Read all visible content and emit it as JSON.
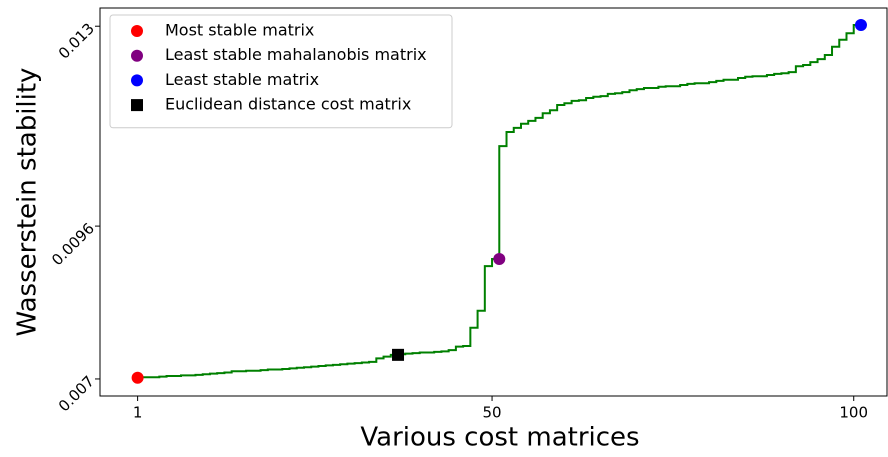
{
  "chart_data": {
    "type": "line",
    "step": "pre",
    "x_label": "Various cost matrices",
    "y_label": "Wasserstein stability",
    "xlim": [
      -4.2,
      104.6
    ],
    "xticks": [
      1,
      50,
      100
    ],
    "ylim": [
      0.00671,
      0.01331
    ],
    "yticks": [
      0.007,
      0.0096,
      0.013
    ],
    "legend": "upper left",
    "x": [
      1,
      2,
      3,
      4,
      5,
      6,
      7,
      8,
      9,
      10,
      11,
      12,
      13,
      14,
      15,
      16,
      17,
      18,
      19,
      20,
      21,
      22,
      23,
      24,
      25,
      26,
      27,
      28,
      29,
      30,
      31,
      32,
      33,
      34,
      35,
      36,
      37,
      38,
      39,
      40,
      41,
      42,
      43,
      44,
      45,
      46,
      47,
      48,
      49,
      50,
      51,
      52,
      53,
      54,
      55,
      56,
      57,
      58,
      59,
      60,
      61,
      62,
      63,
      64,
      65,
      66,
      67,
      68,
      69,
      70,
      71,
      72,
      73,
      74,
      75,
      76,
      77,
      78,
      79,
      80,
      81,
      82,
      83,
      84,
      85,
      86,
      87,
      88,
      89,
      90,
      91,
      92,
      93,
      94,
      95,
      96,
      97,
      98,
      99,
      100,
      101
    ],
    "series": [
      {
        "color": "#008000",
        "values": [
          0.00702,
          0.00703,
          0.00703,
          0.00703,
          0.00704,
          0.00705,
          0.00705,
          0.00706,
          0.00706,
          0.00707,
          0.00708,
          0.00709,
          0.0071,
          0.00711,
          0.00713,
          0.00713,
          0.00714,
          0.00714,
          0.00715,
          0.00716,
          0.00716,
          0.00717,
          0.00718,
          0.00719,
          0.0072,
          0.00721,
          0.00722,
          0.00723,
          0.00724,
          0.00725,
          0.00726,
          0.00727,
          0.00728,
          0.00729,
          0.00735,
          0.00738,
          0.00741,
          0.00742,
          0.00743,
          0.00744,
          0.00745,
          0.00745,
          0.00746,
          0.00747,
          0.00749,
          0.00755,
          0.00756,
          0.00787,
          0.00816,
          0.00892,
          0.00904,
          0.01096,
          0.0112,
          0.01127,
          0.01134,
          0.01139,
          0.01144,
          0.01152,
          0.01157,
          0.01166,
          0.01169,
          0.01173,
          0.01174,
          0.01178,
          0.0118,
          0.01181,
          0.01185,
          0.01186,
          0.01188,
          0.01191,
          0.01193,
          0.01195,
          0.01195,
          0.01197,
          0.01198,
          0.01198,
          0.012,
          0.01202,
          0.01203,
          0.01203,
          0.01205,
          0.01207,
          0.01209,
          0.01209,
          0.01212,
          0.01214,
          0.01215,
          0.01215,
          0.01217,
          0.01219,
          0.0122,
          0.01222,
          0.01232,
          0.01234,
          0.01239,
          0.01244,
          0.01251,
          0.01265,
          0.01277,
          0.01288,
          0.01302
        ]
      },
      {
        "name": "Most stable matrix",
        "color": "#ff0000",
        "marker": "circle",
        "x": [
          1
        ],
        "values": [
          0.00702
        ]
      },
      {
        "name": "Least stable mahalanobis matrix",
        "color": "#800080",
        "marker": "circle",
        "x": [
          51
        ],
        "values": [
          0.00904
        ]
      },
      {
        "name": "Least stable matrix",
        "color": "#0000ff",
        "marker": "circle",
        "x": [
          101
        ],
        "values": [
          0.01302
        ]
      },
      {
        "name": "Euclidean distance cost matrix",
        "color": "#000000",
        "marker": "square",
        "x": [
          37
        ],
        "values": [
          0.00741
        ]
      }
    ]
  }
}
